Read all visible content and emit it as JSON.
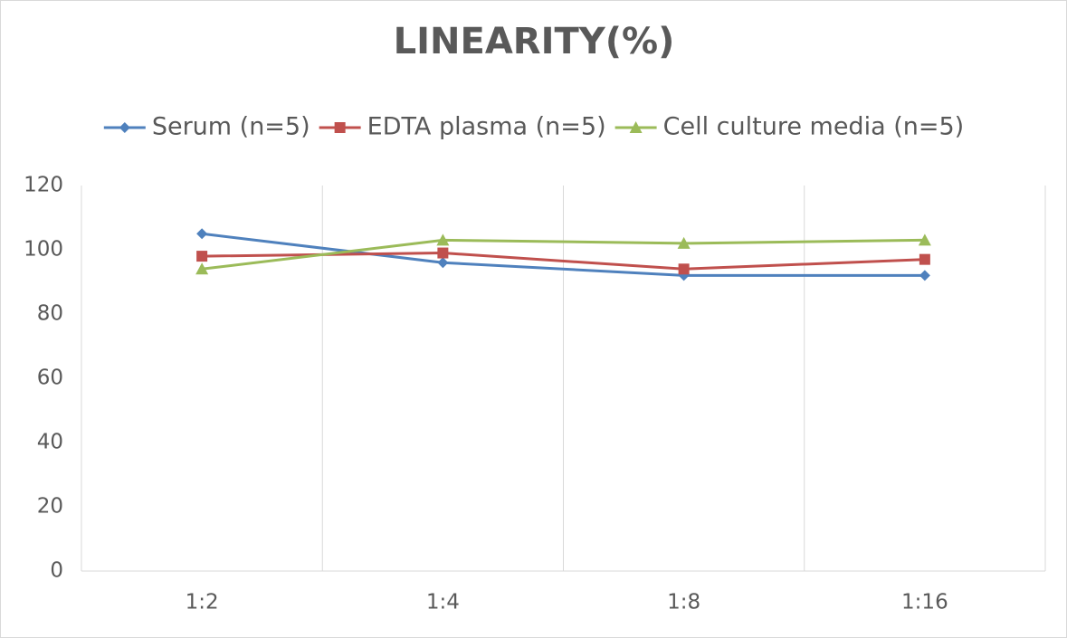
{
  "chart_data": {
    "type": "line",
    "title": "LINEARITY(%)",
    "categories": [
      "1:2",
      "1:4",
      "1:8",
      "1:16"
    ],
    "series": [
      {
        "name": "Serum (n=5)",
        "color": "#4f81bd",
        "marker": "diamond",
        "values": [
          105,
          96,
          92,
          92
        ]
      },
      {
        "name": "EDTA plasma (n=5)",
        "color": "#c0504d",
        "marker": "square",
        "values": [
          98,
          99,
          94,
          97
        ]
      },
      {
        "name": "Cell culture media (n=5)",
        "color": "#9bbb59",
        "marker": "triangle",
        "values": [
          94,
          103,
          102,
          103
        ]
      }
    ],
    "ylim": [
      0,
      120
    ],
    "yticks": [
      0,
      20,
      40,
      60,
      80,
      100,
      120
    ],
    "legend": "top"
  }
}
